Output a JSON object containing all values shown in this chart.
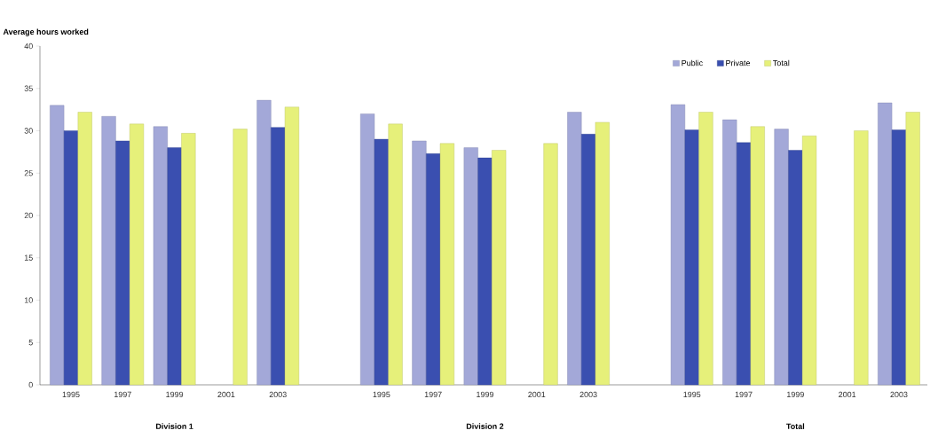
{
  "chart_data": {
    "type": "bar",
    "ylabel": "Average hours worked",
    "categories": [
      "1995",
      "1997",
      "1999",
      "2001",
      "2003",
      null,
      "1995",
      "1997",
      "1999",
      "2001",
      "2003",
      null,
      "1995",
      "1997",
      "1999",
      "2001",
      "2003"
    ],
    "series": [
      {
        "name": "Public",
        "color": "#a3a8d8",
        "values": [
          33.0,
          31.7,
          30.5,
          null,
          33.6,
          null,
          32.0,
          28.8,
          28.0,
          null,
          32.2,
          null,
          33.1,
          31.3,
          30.2,
          null,
          33.3
        ]
      },
      {
        "name": "Private",
        "color": "#3a4fb0",
        "values": [
          30.0,
          28.8,
          28.0,
          null,
          30.4,
          null,
          29.0,
          27.3,
          26.8,
          null,
          29.6,
          null,
          30.1,
          28.6,
          27.7,
          null,
          30.1
        ]
      },
      {
        "name": "Total",
        "color": "#e6f07a",
        "values": [
          32.2,
          30.8,
          29.7,
          30.2,
          32.8,
          null,
          30.8,
          28.5,
          27.7,
          28.5,
          31.0,
          null,
          32.2,
          30.5,
          29.4,
          30.0,
          32.2
        ]
      }
    ],
    "ylim": [
      0,
      40
    ],
    "yticks": [
      0,
      5,
      10,
      15,
      20,
      25,
      30,
      35,
      40
    ],
    "annotations": [
      "Division 1",
      "Division  2",
      "Total"
    ],
    "legend": "top right",
    "grid": false
  }
}
